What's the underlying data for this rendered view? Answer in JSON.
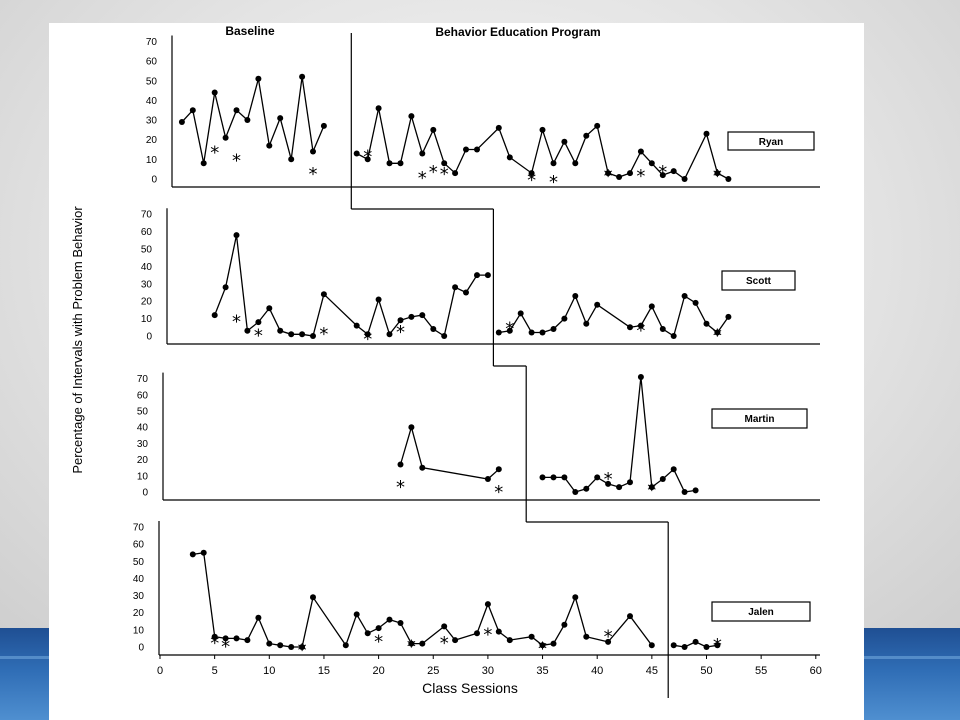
{
  "colors": {
    "ink": "#000000",
    "paper": "#ffffff",
    "band": "#2f6db5"
  },
  "chart_data": {
    "type": "line",
    "ylabel": "Percentage of Intervals with Problem Behavior",
    "xlabel": "Class Sessions",
    "phases": [
      "Baseline",
      "Behavior Education Program"
    ],
    "xlim": [
      0,
      60
    ],
    "ylim": [
      0,
      70
    ],
    "x_ticks": [
      0,
      5,
      10,
      15,
      20,
      25,
      30,
      35,
      40,
      45,
      50,
      55,
      60
    ],
    "y_ticks": [
      0,
      10,
      20,
      30,
      40,
      50,
      60,
      70
    ],
    "marker_legend": "*",
    "panels": [
      {
        "name": "Ryan",
        "phase_change_x": 17.5,
        "baseline": [
          [
            2,
            29
          ],
          [
            3,
            35
          ],
          [
            4,
            8
          ],
          [
            5,
            44
          ],
          [
            6,
            21
          ],
          [
            7,
            35
          ],
          [
            8,
            30
          ],
          [
            9,
            51
          ],
          [
            10,
            17
          ],
          [
            11,
            31
          ],
          [
            12,
            10
          ],
          [
            13,
            52
          ],
          [
            14,
            14
          ],
          [
            15,
            27
          ]
        ],
        "intervention": [
          [
            18,
            13
          ],
          [
            19,
            10
          ],
          [
            20,
            36
          ],
          [
            21,
            8
          ],
          [
            22,
            8
          ],
          [
            23,
            32
          ],
          [
            24,
            13
          ],
          [
            25,
            25
          ],
          [
            26,
            8
          ],
          [
            27,
            3
          ],
          [
            28,
            15
          ],
          [
            29,
            15
          ],
          [
            31,
            26
          ],
          [
            32,
            11
          ],
          [
            34,
            3
          ],
          [
            35,
            25
          ],
          [
            36,
            8
          ],
          [
            37,
            19
          ],
          [
            38,
            8
          ],
          [
            39,
            22
          ],
          [
            40,
            27
          ],
          [
            41,
            3
          ],
          [
            42,
            1
          ],
          [
            43,
            3
          ],
          [
            44,
            14
          ],
          [
            45,
            8
          ],
          [
            46,
            2
          ],
          [
            47,
            4
          ],
          [
            48,
            0
          ],
          [
            50,
            23
          ],
          [
            51,
            3
          ],
          [
            52,
            0
          ]
        ],
        "star_points": [
          [
            5,
            15
          ],
          [
            7,
            11
          ],
          [
            14,
            4
          ],
          [
            19,
            13
          ],
          [
            24,
            2
          ],
          [
            25,
            5
          ],
          [
            26,
            4
          ],
          [
            34,
            1
          ],
          [
            36,
            0
          ],
          [
            41,
            3
          ],
          [
            44,
            3
          ],
          [
            46,
            5
          ],
          [
            51,
            3
          ]
        ]
      },
      {
        "name": "Scott",
        "phase_change_x": 30.5,
        "baseline": [
          [
            5,
            12
          ],
          [
            6,
            28
          ],
          [
            7,
            58
          ],
          [
            8,
            3
          ],
          [
            9,
            8
          ],
          [
            10,
            16
          ],
          [
            11,
            3
          ],
          [
            12,
            1
          ],
          [
            13,
            1
          ],
          [
            14,
            0
          ],
          [
            15,
            24
          ],
          [
            18,
            6
          ],
          [
            19,
            1
          ],
          [
            20,
            21
          ],
          [
            21,
            1
          ],
          [
            22,
            9
          ],
          [
            23,
            11
          ],
          [
            24,
            12
          ],
          [
            25,
            4
          ],
          [
            26,
            0
          ],
          [
            27,
            28
          ],
          [
            28,
            25
          ],
          [
            29,
            35
          ],
          [
            30,
            35
          ]
        ],
        "intervention": [
          [
            31,
            2
          ],
          [
            32,
            3
          ],
          [
            33,
            13
          ],
          [
            34,
            2
          ],
          [
            35,
            2
          ],
          [
            36,
            4
          ],
          [
            37,
            10
          ],
          [
            38,
            23
          ],
          [
            39,
            7
          ],
          [
            40,
            18
          ],
          [
            43,
            5
          ],
          [
            44,
            6
          ],
          [
            45,
            17
          ],
          [
            46,
            4
          ],
          [
            47,
            0
          ],
          [
            48,
            23
          ],
          [
            49,
            19
          ],
          [
            50,
            7
          ],
          [
            51,
            2
          ],
          [
            52,
            11
          ]
        ],
        "star_points": [
          [
            7,
            10
          ],
          [
            9,
            2
          ],
          [
            15,
            3
          ],
          [
            19,
            0
          ],
          [
            22,
            4
          ],
          [
            32,
            6
          ],
          [
            44,
            5
          ],
          [
            51,
            2
          ]
        ]
      },
      {
        "name": "Martin",
        "phase_change_x": 33.5,
        "baseline": [
          [
            22,
            17
          ],
          [
            23,
            40
          ],
          [
            24,
            15
          ],
          [
            30,
            8
          ],
          [
            31,
            14
          ]
        ],
        "intervention": [
          [
            35,
            9
          ],
          [
            36,
            9
          ],
          [
            37,
            9
          ],
          [
            38,
            0
          ],
          [
            39,
            2
          ],
          [
            40,
            9
          ],
          [
            41,
            5
          ],
          [
            42,
            3
          ],
          [
            43,
            6
          ],
          [
            44,
            71
          ],
          [
            45,
            3
          ],
          [
            46,
            8
          ],
          [
            47,
            14
          ],
          [
            48,
            0
          ],
          [
            49,
            1
          ]
        ],
        "star_points": [
          [
            22,
            5
          ],
          [
            31,
            2
          ],
          [
            41,
            10
          ],
          [
            45,
            3
          ]
        ]
      },
      {
        "name": "Jalen",
        "phase_change_x": 46.5,
        "baseline": [
          [
            3,
            54
          ],
          [
            4,
            55
          ],
          [
            5,
            6
          ],
          [
            6,
            5
          ],
          [
            7,
            5
          ],
          [
            8,
            4
          ],
          [
            9,
            17
          ],
          [
            10,
            2
          ],
          [
            11,
            1
          ],
          [
            12,
            0
          ],
          [
            13,
            0
          ],
          [
            14,
            29
          ],
          [
            17,
            1
          ],
          [
            18,
            19
          ],
          [
            19,
            8
          ],
          [
            20,
            11
          ],
          [
            21,
            16
          ],
          [
            22,
            14
          ],
          [
            23,
            2
          ],
          [
            24,
            2
          ],
          [
            26,
            12
          ],
          [
            27,
            4
          ],
          [
            29,
            8
          ],
          [
            30,
            25
          ],
          [
            31,
            9
          ],
          [
            32,
            4
          ],
          [
            34,
            6
          ],
          [
            35,
            1
          ],
          [
            36,
            2
          ],
          [
            37,
            13
          ],
          [
            38,
            29
          ],
          [
            39,
            6
          ],
          [
            41,
            3
          ],
          [
            43,
            18
          ],
          [
            45,
            1
          ]
        ],
        "intervention": [
          [
            47,
            1
          ],
          [
            48,
            0
          ],
          [
            49,
            3
          ],
          [
            50,
            0
          ],
          [
            51,
            1
          ]
        ],
        "star_points": [
          [
            5,
            4
          ],
          [
            6,
            2
          ],
          [
            13,
            0
          ],
          [
            20,
            5
          ],
          [
            23,
            2
          ],
          [
            26,
            4
          ],
          [
            30,
            9
          ],
          [
            35,
            1
          ],
          [
            41,
            8
          ],
          [
            51,
            3
          ]
        ]
      }
    ]
  }
}
